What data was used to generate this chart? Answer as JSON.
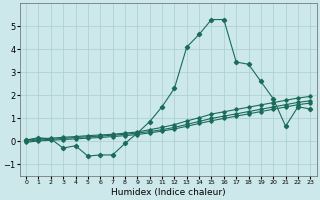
{
  "title": "",
  "xlabel": "Humidex (Indice chaleur)",
  "ylabel": "",
  "bg_color": "#cce8ea",
  "grid_color": "#aacdd0",
  "line_color": "#1a6b5a",
  "xlim": [
    -0.5,
    23.5
  ],
  "ylim": [
    -1.5,
    6.0
  ],
  "yticks": [
    -1,
    0,
    1,
    2,
    3,
    4,
    5
  ],
  "xticks": [
    0,
    1,
    2,
    3,
    4,
    5,
    6,
    7,
    8,
    9,
    10,
    11,
    12,
    13,
    14,
    15,
    16,
    17,
    18,
    19,
    20,
    21,
    22,
    23
  ],
  "series1_x": [
    0,
    1,
    2,
    3,
    4,
    5,
    6,
    7,
    8,
    9,
    10,
    11,
    12,
    13,
    14,
    15,
    16,
    17,
    18,
    19,
    20,
    21,
    22,
    23
  ],
  "series1_y": [
    0.05,
    0.15,
    0.1,
    -0.3,
    -0.2,
    -0.65,
    -0.6,
    -0.6,
    -0.1,
    0.35,
    0.85,
    1.5,
    2.3,
    4.1,
    4.65,
    5.3,
    5.3,
    3.45,
    3.35,
    2.6,
    1.85,
    0.65,
    1.5,
    1.4
  ],
  "series2_x": [
    0,
    1,
    2,
    3,
    4,
    5,
    6,
    7,
    8,
    9,
    10,
    11,
    12,
    13,
    14,
    15,
    16,
    17,
    18,
    19,
    20,
    21,
    22,
    23
  ],
  "series2_y": [
    0.05,
    0.1,
    0.13,
    0.17,
    0.2,
    0.24,
    0.27,
    0.3,
    0.35,
    0.4,
    0.5,
    0.6,
    0.72,
    0.88,
    1.02,
    1.18,
    1.28,
    1.38,
    1.48,
    1.58,
    1.68,
    1.78,
    1.88,
    1.95
  ],
  "series3_x": [
    0,
    1,
    2,
    3,
    4,
    5,
    6,
    7,
    8,
    9,
    10,
    11,
    12,
    13,
    14,
    15,
    16,
    17,
    18,
    19,
    20,
    21,
    22,
    23
  ],
  "series3_y": [
    0.0,
    0.05,
    0.08,
    0.12,
    0.16,
    0.19,
    0.22,
    0.26,
    0.3,
    0.35,
    0.42,
    0.5,
    0.6,
    0.73,
    0.86,
    0.99,
    1.09,
    1.19,
    1.29,
    1.39,
    1.49,
    1.59,
    1.69,
    1.76
  ],
  "series4_x": [
    0,
    1,
    2,
    3,
    4,
    5,
    6,
    7,
    8,
    9,
    10,
    11,
    12,
    13,
    14,
    15,
    16,
    17,
    18,
    19,
    20,
    21,
    22,
    23
  ],
  "series4_y": [
    -0.05,
    0.01,
    0.04,
    0.07,
    0.1,
    0.13,
    0.16,
    0.2,
    0.24,
    0.29,
    0.36,
    0.44,
    0.53,
    0.65,
    0.77,
    0.89,
    0.99,
    1.09,
    1.19,
    1.29,
    1.39,
    1.49,
    1.59,
    1.66
  ]
}
